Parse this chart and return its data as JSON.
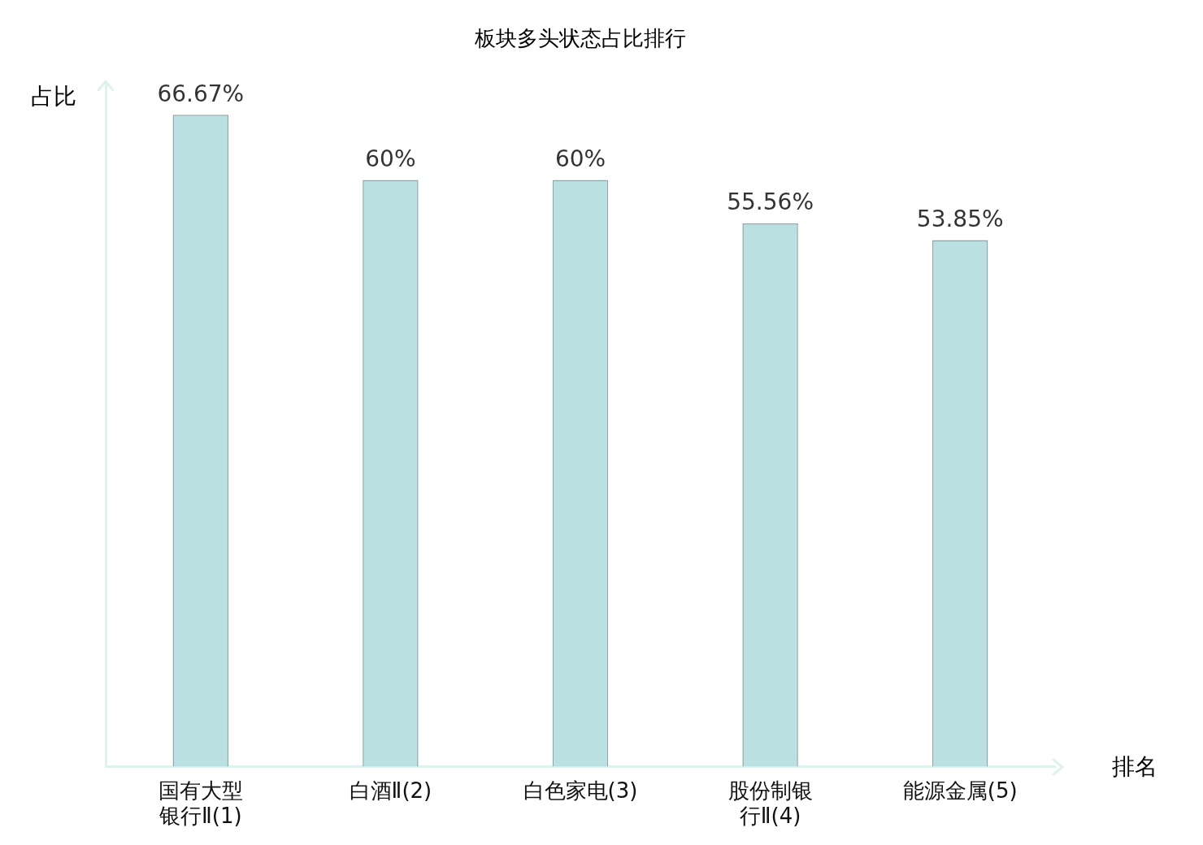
{
  "chart_data": {
    "type": "bar",
    "title": "板块多头状态占比排行",
    "xlabel": "排名",
    "ylabel": "占比",
    "categories": [
      "国有大型银行Ⅱ(1)",
      "白酒Ⅱ(2)",
      "白色家电(3)",
      "股份制银行Ⅱ(4)",
      "能源金属(5)"
    ],
    "series": [
      {
        "color": "#bae0e2",
        "values": [
          66.67,
          60,
          60,
          55.56,
          53.85
        ],
        "value_labels": [
          "66.67%",
          "60%",
          "60%",
          "55.56%",
          "53.85%"
        ]
      }
    ],
    "tick_labels": "x",
    "grid": false,
    "legend": false
  }
}
